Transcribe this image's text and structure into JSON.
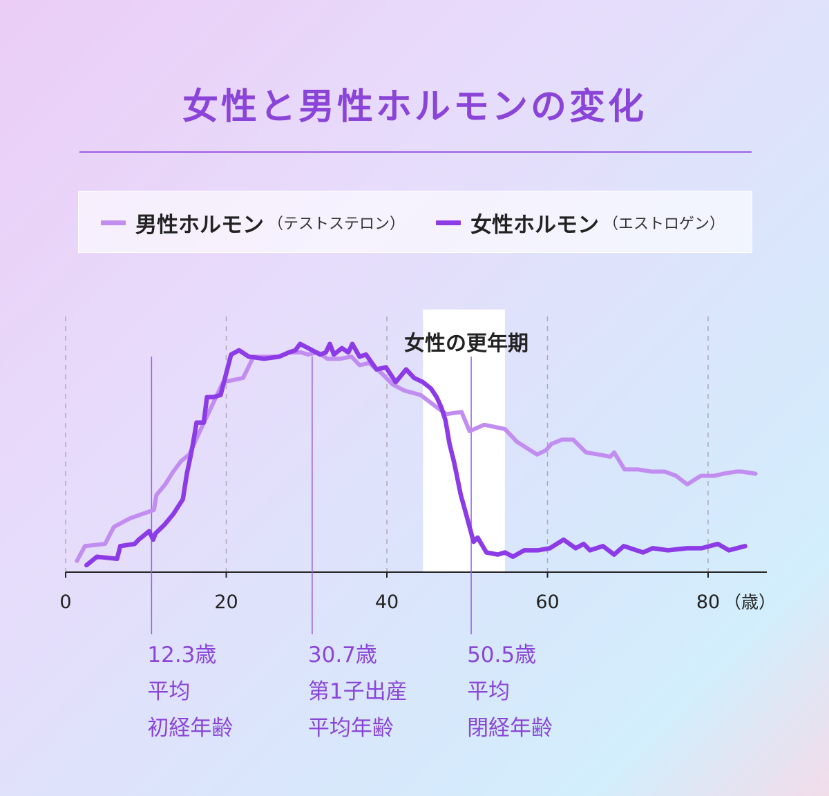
{
  "title": "女性と男性ホルモンの変化",
  "legend": {
    "male": {
      "name": "男性ホルモン",
      "sub": "（テストステロン）",
      "color": "#c28df0"
    },
    "female": {
      "name": "女性ホルモン",
      "sub": "（エストロゲン）",
      "color": "#8c3be6"
    }
  },
  "chart_data": {
    "type": "line",
    "xlim": [
      0,
      87
    ],
    "ylim": [
      0,
      100
    ],
    "x_ticks": [
      "0",
      "20",
      "40",
      "60",
      "80"
    ],
    "x_tick_values": [
      0,
      20,
      40,
      60,
      80
    ],
    "x_unit": "（歳）",
    "grid": "dashed vertical",
    "highlight": {
      "label": "女性の更年期",
      "x_range": [
        44.5,
        54.7
      ]
    },
    "series": [
      {
        "name": "男性ホルモン（テストステロン）",
        "color": "#c28df0",
        "x": [
          1.4,
          2.4,
          4.9,
          6,
          8,
          11,
          11.3,
          12.4,
          13.4,
          14.4,
          15.4,
          16.6,
          19.6,
          22.1,
          23.4,
          26.5,
          27.8,
          29.3,
          30.2,
          31.4,
          32.6,
          34.2,
          35.6,
          36.6,
          37.8,
          39.4,
          40.7,
          42.2,
          44.2,
          46.3,
          47.4,
          49.3,
          50.3,
          52.1,
          54.7,
          56.2,
          58.7,
          59.8,
          60.5,
          61.8,
          63.2,
          64.8,
          66.4,
          67.8,
          68.3,
          69.6,
          71.3,
          72.9,
          74.6,
          76,
          77.4,
          79.1,
          80.8,
          81.9,
          83.5,
          84.2,
          85.9
        ],
        "y": [
          2,
          9,
          10,
          18,
          22,
          26,
          33,
          38,
          44,
          49,
          52,
          62,
          86,
          88,
          98,
          98,
          100,
          100,
          99,
          100,
          97,
          97,
          98,
          94,
          95,
          90,
          85,
          82,
          80,
          74,
          71,
          72,
          63,
          66,
          64,
          58,
          52,
          54,
          57,
          59,
          59,
          53,
          52,
          51,
          53,
          45,
          45,
          44,
          44,
          42,
          38,
          42,
          42,
          43,
          44,
          44,
          43
        ]
      },
      {
        "name": "女性ホルモン（エストロゲン）",
        "color": "#8c3be6",
        "x": [
          2.6,
          3.9,
          6.4,
          6.8,
          8.6,
          9.1,
          10.4,
          10.9,
          11.2,
          12.3,
          13.4,
          14.6,
          15.1,
          15.6,
          15.9,
          16.3,
          17.2,
          17.6,
          18.4,
          19.3,
          20.6,
          21.6,
          22.8,
          24.7,
          26.6,
          27.8,
          28.6,
          29.2,
          30.2,
          31.7,
          32.4,
          32.9,
          33.4,
          34.4,
          35.2,
          35.7,
          36.6,
          37.4,
          38.7,
          39.9,
          41.1,
          42.4,
          43.4,
          44.5,
          45.5,
          46.2,
          46.8,
          47.3,
          47.8,
          48.4,
          49.2,
          49.8,
          50.8,
          51.3,
          52.4,
          53.8,
          54.7,
          55.7,
          57.1,
          58.8,
          60.3,
          62,
          63.5,
          64.5,
          65.3,
          66.9,
          68.3,
          69.5,
          71.9,
          73.1,
          75,
          77.4,
          79.2,
          81.2,
          82.6,
          84.6
        ],
        "y": [
          0,
          4,
          3,
          9,
          10,
          12,
          16,
          12,
          15,
          19,
          24,
          31,
          43,
          52,
          58,
          67,
          67,
          79,
          79,
          80,
          99,
          101,
          98,
          97,
          98,
          100,
          101,
          104,
          102,
          99,
          100,
          104,
          99,
          102,
          100,
          104,
          98,
          99,
          92,
          93,
          86,
          92,
          88,
          86,
          83,
          79,
          74,
          68,
          57,
          48,
          33,
          25,
          11,
          13,
          6,
          5,
          6,
          4,
          7,
          7,
          8,
          12,
          8,
          10,
          7,
          9,
          5,
          9,
          6,
          8,
          7,
          8,
          8,
          10,
          7,
          9
        ]
      }
    ],
    "annotations": [
      {
        "x": 10.7,
        "lines": [
          "12.3歳",
          "平均",
          "初経年齢"
        ]
      },
      {
        "x": 30.7,
        "lines": [
          "30.7歳",
          "第1子出産",
          "平均年齢"
        ]
      },
      {
        "x": 50.5,
        "lines": [
          "50.5歳",
          "平均",
          "閉経年齢"
        ]
      }
    ]
  }
}
